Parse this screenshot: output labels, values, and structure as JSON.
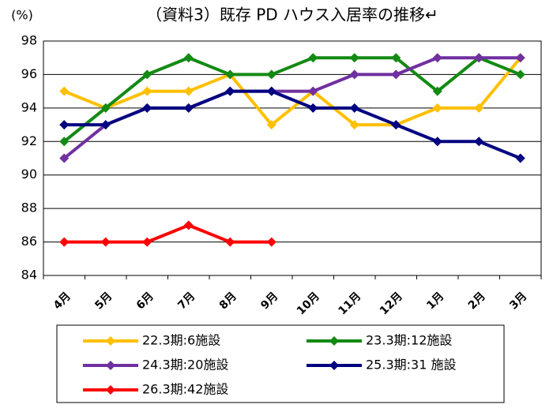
{
  "chart_data": {
    "type": "line",
    "title": "（資料3）既存 PD ハウス入居率の推移↵",
    "y_label": "(%)",
    "categories": [
      "4月",
      "5月",
      "6月",
      "7月",
      "8月",
      "9月",
      "10月",
      "11月",
      "12月",
      "1月",
      "2月",
      "3月"
    ],
    "series": [
      {
        "name": "22.3期:6施設",
        "color": "#ffc000",
        "values": [
          95,
          94,
          95,
          95,
          96,
          93,
          95,
          93,
          93,
          94,
          94,
          97
        ]
      },
      {
        "name": "23.3期:12施設",
        "color": "#138a13",
        "values": [
          92,
          94,
          96,
          97,
          96,
          96,
          97,
          97,
          97,
          95,
          97,
          96
        ]
      },
      {
        "name": "24.3期:20施設",
        "color": "#7030a0",
        "values": [
          91,
          93,
          94,
          94,
          95,
          95,
          95,
          96,
          96,
          97,
          97,
          97
        ]
      },
      {
        "name": "25.3期:31 施設",
        "color": "#000080",
        "values": [
          93,
          93,
          94,
          94,
          95,
          95,
          94,
          94,
          93,
          92,
          92,
          91
        ]
      },
      {
        "name": "26.3期:42施設",
        "color": "#ff0000",
        "values": [
          86,
          86,
          86,
          87,
          86,
          86,
          null,
          null,
          null,
          null,
          null,
          null
        ]
      }
    ],
    "ylim": [
      84,
      98
    ],
    "yticks": [
      84,
      86,
      88,
      90,
      92,
      94,
      96,
      98
    ],
    "grid": true
  }
}
